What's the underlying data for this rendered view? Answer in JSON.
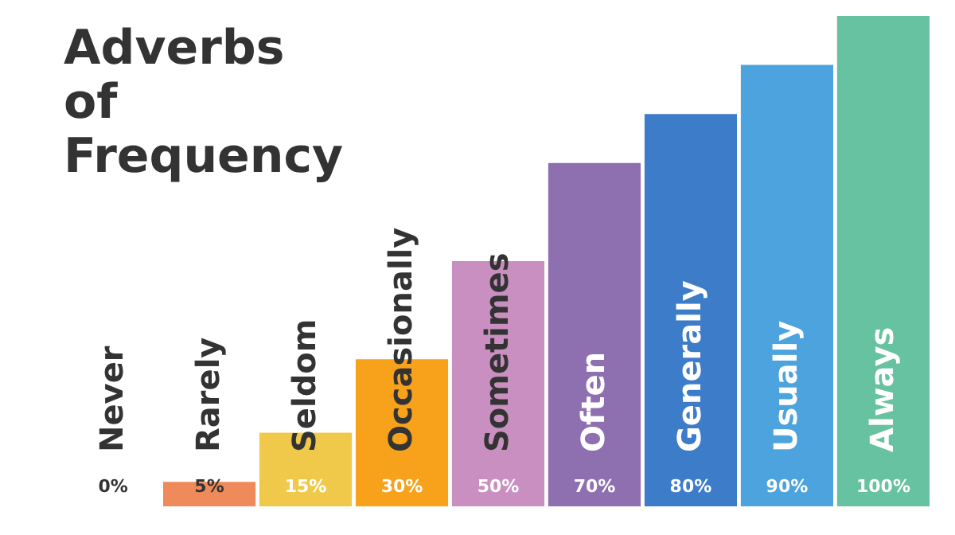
{
  "chart_data": {
    "type": "bar",
    "title": "Adverbs of Frequency",
    "tick_labels": false,
    "categories": [
      "Never",
      "Rarely",
      "Seldom",
      "Occasionally",
      "Sometimes",
      "Often",
      "Generally",
      "Usually",
      "Always"
    ],
    "values": [
      0,
      5,
      15,
      30,
      50,
      70,
      80,
      90,
      100
    ],
    "colors": [
      "#e8601c",
      "#ef8a5a",
      "#f0c94a",
      "#f8a21b",
      "#c98fc0",
      "#8e6fb0",
      "#3d7cc9",
      "#4ca3dd",
      "#66c2a0"
    ],
    "value_labels": [
      "0%",
      "5%",
      "15%",
      "30%",
      "50%",
      "70%",
      "80%",
      "90%",
      "100%"
    ]
  }
}
